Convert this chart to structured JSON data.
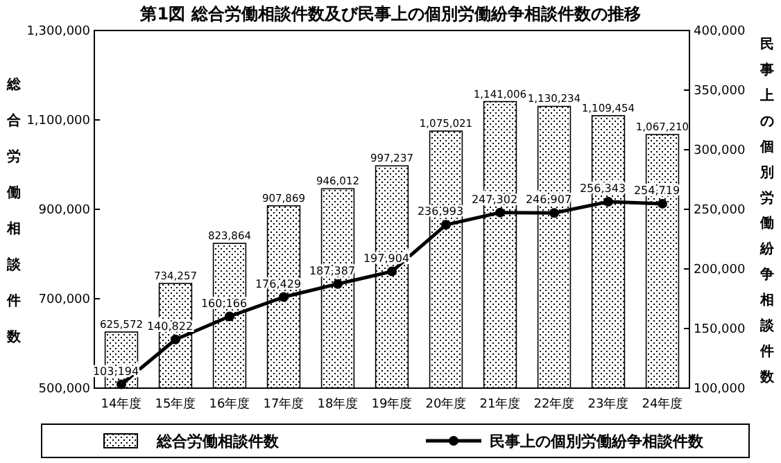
{
  "chart_data": {
    "type": "bar",
    "title": "第1図 総合労働相談件数及び民事上の個別労働紛争相談件数の推移",
    "categories": [
      "14年度",
      "15年度",
      "16年度",
      "17年度",
      "18年度",
      "19年度",
      "20年度",
      "21年度",
      "22年度",
      "23年度",
      "24年度"
    ],
    "series": [
      {
        "name": "総合労働相談件数",
        "color": "#000000",
        "values": [
          625572,
          734257,
          823864,
          907869,
          946012,
          997237,
          1075021,
          1141006,
          1130234,
          1109454,
          1067210
        ],
        "value_labels": [
          "625,572",
          "734,257",
          "823,864",
          "907,869",
          "946,012",
          "997,237",
          "1,075,021",
          "1,141,006",
          "1,130,234",
          "1,109,454",
          "1,067,210"
        ]
      },
      {
        "name": "民事上の個別労働紛争相談件数",
        "type": "line",
        "axis": "y2",
        "color": "#000000",
        "values": [
          103194,
          140822,
          160166,
          176429,
          187387,
          197904,
          236993,
          247302,
          246907,
          256343,
          254719
        ],
        "value_labels": [
          "103,194",
          "140,822",
          "160,166",
          "176,429",
          "187,387",
          "197,904",
          "236,993",
          "247,302",
          "246,907",
          "256,343",
          "254,719"
        ]
      }
    ],
    "ylabel": "総合労働相談件数",
    "y2label": "民事上の個別労働紛争相談件数",
    "ylim": [
      500000,
      1300000
    ],
    "yticks": [
      {
        "value": 500000,
        "label": "500,000"
      },
      {
        "value": 700000,
        "label": "700,000"
      },
      {
        "value": 900000,
        "label": "900,000"
      },
      {
        "value": 1100000,
        "label": "1,100,000"
      },
      {
        "value": 1300000,
        "label": "1,300,000"
      }
    ],
    "y2lim": [
      100000,
      400000
    ],
    "y2ticks": [
      {
        "value": 100000,
        "label": "100,000"
      },
      {
        "value": 150000,
        "label": "150,000"
      },
      {
        "value": 200000,
        "label": "200,000"
      },
      {
        "value": 250000,
        "label": "250,000"
      },
      {
        "value": 300000,
        "label": "300,000"
      },
      {
        "value": 350000,
        "label": "350,000"
      },
      {
        "value": 400000,
        "label": "400,000"
      }
    ],
    "legend": "bottom",
    "marker": "circle",
    "line_style": "solid",
    "grid": false
  }
}
